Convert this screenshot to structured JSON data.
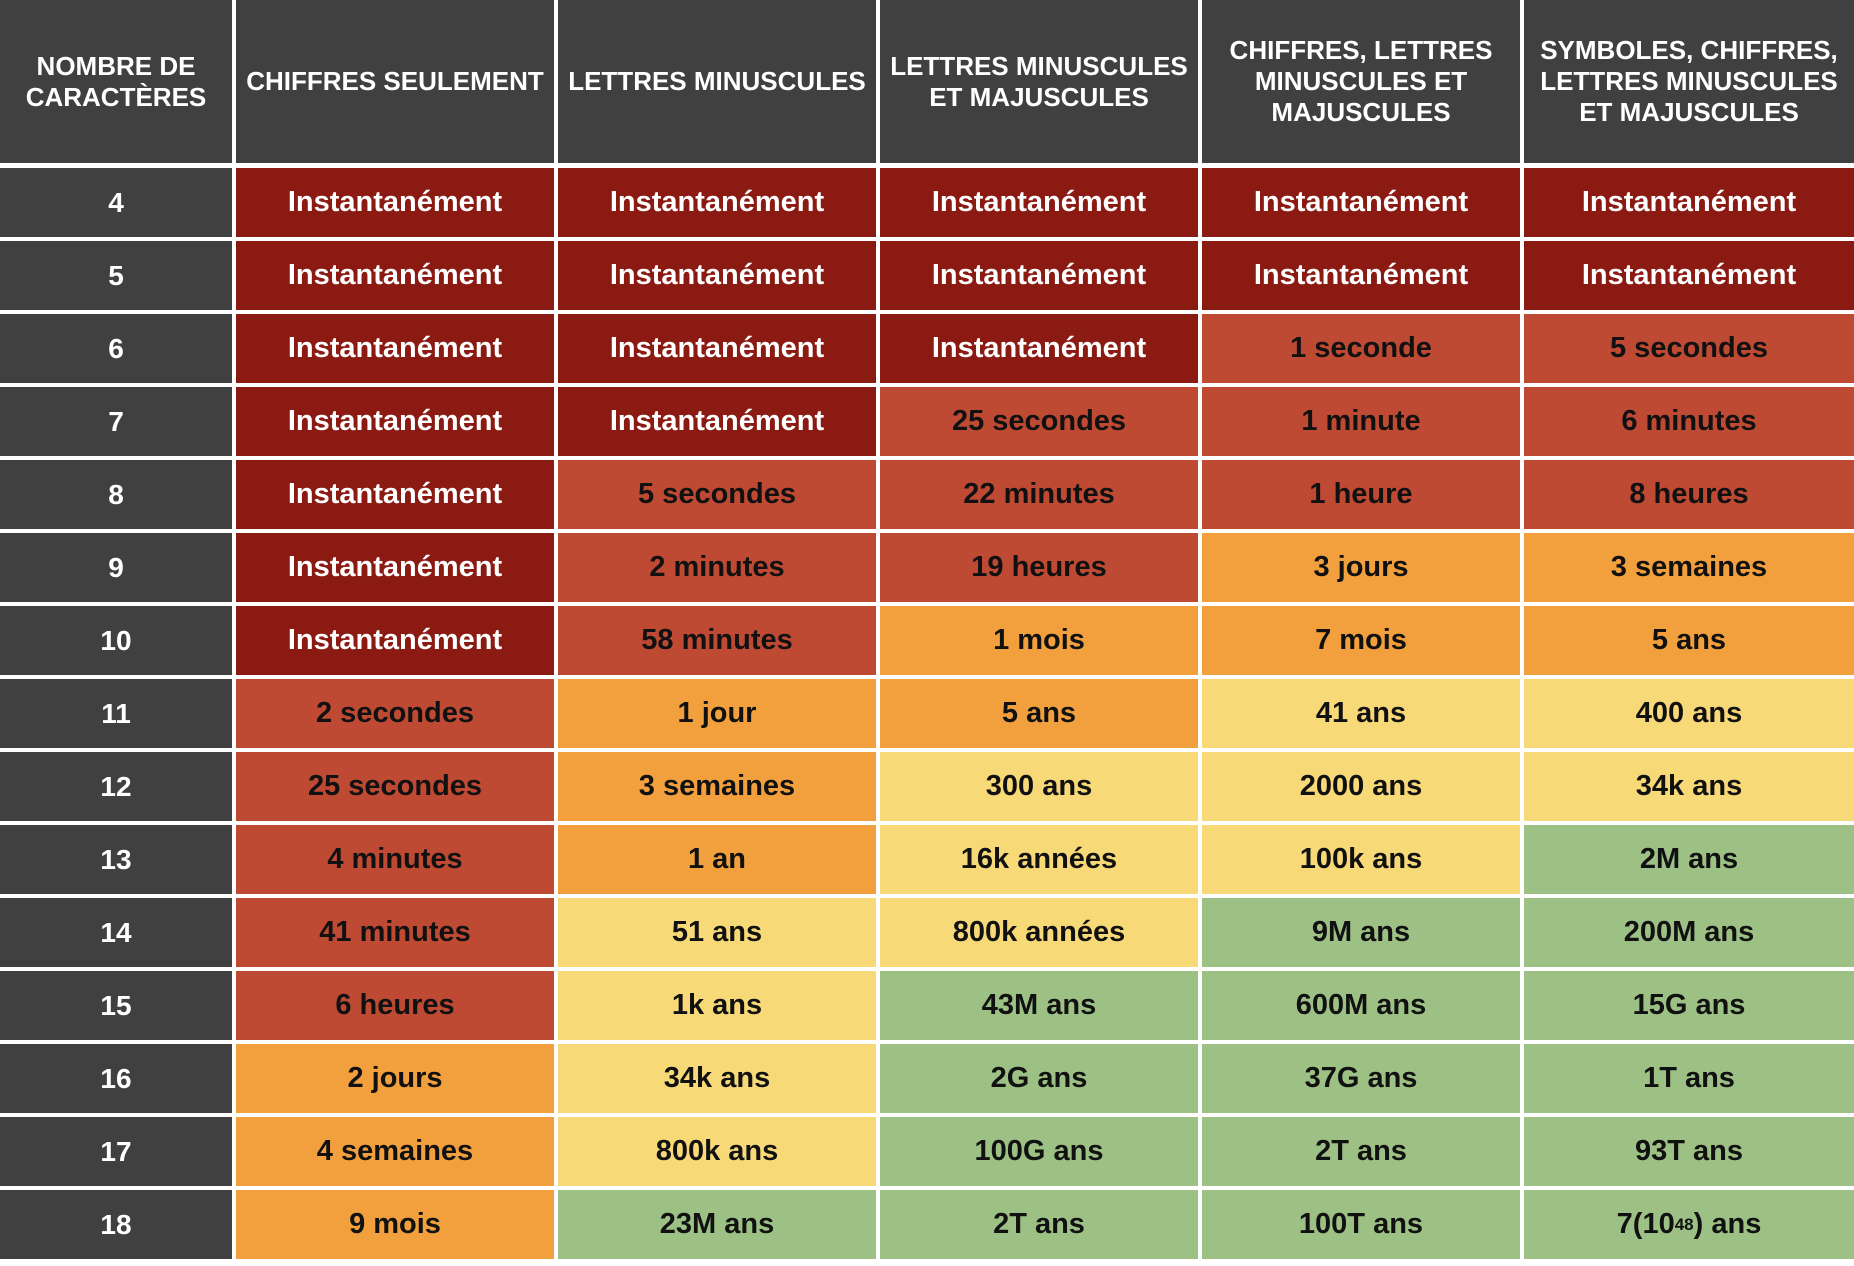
{
  "chart_data": {
    "type": "table",
    "columns": [
      "NOMBRE DE CARACTÈRES",
      "CHIFFRES SEULEMENT",
      "LETTRES MINUSCULES",
      "LETTRES MINUSCULES ET MAJUSCULES",
      "CHIFFRES, LETTRES MINUSCULES ET MAJUSCULES",
      "SYMBOLES, CHIFFRES, LETTRES MINUSCULES ET MAJUSCULES"
    ],
    "level_colors": [
      "#8b1a13",
      "#bf4a34",
      "#f2a03d",
      "#f8d978",
      "#9dc185"
    ],
    "rows": [
      {
        "length": "4",
        "cells": [
          {
            "text": "Instantanément",
            "level": 0
          },
          {
            "text": "Instantanément",
            "level": 0
          },
          {
            "text": "Instantanément",
            "level": 0
          },
          {
            "text": "Instantanément",
            "level": 0
          },
          {
            "text": "Instantanément",
            "level": 0
          }
        ]
      },
      {
        "length": "5",
        "cells": [
          {
            "text": "Instantanément",
            "level": 0
          },
          {
            "text": "Instantanément",
            "level": 0
          },
          {
            "text": "Instantanément",
            "level": 0
          },
          {
            "text": "Instantanément",
            "level": 0
          },
          {
            "text": "Instantanément",
            "level": 0
          }
        ]
      },
      {
        "length": "6",
        "cells": [
          {
            "text": "Instantanément",
            "level": 0
          },
          {
            "text": "Instantanément",
            "level": 0
          },
          {
            "text": "Instantanément",
            "level": 0
          },
          {
            "text": "1 seconde",
            "level": 1
          },
          {
            "text": "5 secondes",
            "level": 1
          }
        ]
      },
      {
        "length": "7",
        "cells": [
          {
            "text": "Instantanément",
            "level": 0
          },
          {
            "text": "Instantanément",
            "level": 0
          },
          {
            "text": "25 secondes",
            "level": 1
          },
          {
            "text": "1 minute",
            "level": 1
          },
          {
            "text": "6 minutes",
            "level": 1
          }
        ]
      },
      {
        "length": "8",
        "cells": [
          {
            "text": "Instantanément",
            "level": 0
          },
          {
            "text": "5 secondes",
            "level": 1
          },
          {
            "text": "22 minutes",
            "level": 1
          },
          {
            "text": "1 heure",
            "level": 1
          },
          {
            "text": "8 heures",
            "level": 1
          }
        ]
      },
      {
        "length": "9",
        "cells": [
          {
            "text": "Instantanément",
            "level": 0
          },
          {
            "text": "2 minutes",
            "level": 1
          },
          {
            "text": "19 heures",
            "level": 1
          },
          {
            "text": "3 jours",
            "level": 2
          },
          {
            "text": "3 semaines",
            "level": 2
          }
        ]
      },
      {
        "length": "10",
        "cells": [
          {
            "text": "Instantanément",
            "level": 0
          },
          {
            "text": "58 minutes",
            "level": 1
          },
          {
            "text": "1 mois",
            "level": 2
          },
          {
            "text": "7 mois",
            "level": 2
          },
          {
            "text": "5 ans",
            "level": 2
          }
        ]
      },
      {
        "length": "11",
        "cells": [
          {
            "text": "2 secondes",
            "level": 1
          },
          {
            "text": "1 jour",
            "level": 2
          },
          {
            "text": "5 ans",
            "level": 2
          },
          {
            "text": "41 ans",
            "level": 3
          },
          {
            "text": "400 ans",
            "level": 3
          }
        ]
      },
      {
        "length": "12",
        "cells": [
          {
            "text": "25 secondes",
            "level": 1
          },
          {
            "text": "3 semaines",
            "level": 2
          },
          {
            "text": "300 ans",
            "level": 3
          },
          {
            "text": "2000 ans",
            "level": 3
          },
          {
            "text": "34k ans",
            "level": 3
          }
        ]
      },
      {
        "length": "13",
        "cells": [
          {
            "text": "4 minutes",
            "level": 1
          },
          {
            "text": "1 an",
            "level": 2
          },
          {
            "text": "16k années",
            "level": 3
          },
          {
            "text": "100k ans",
            "level": 3
          },
          {
            "text": "2M ans",
            "level": 4
          }
        ]
      },
      {
        "length": "14",
        "cells": [
          {
            "text": "41 minutes",
            "level": 1
          },
          {
            "text": "51 ans",
            "level": 3
          },
          {
            "text": "800k années",
            "level": 3
          },
          {
            "text": "9M ans",
            "level": 4
          },
          {
            "text": "200M ans",
            "level": 4
          }
        ]
      },
      {
        "length": "15",
        "cells": [
          {
            "text": "6 heures",
            "level": 1
          },
          {
            "text": "1k ans",
            "level": 3
          },
          {
            "text": "43M ans",
            "level": 4
          },
          {
            "text": "600M ans",
            "level": 4
          },
          {
            "text": "15G ans",
            "level": 4
          }
        ]
      },
      {
        "length": "16",
        "cells": [
          {
            "text": "2 jours",
            "level": 2
          },
          {
            "text": "34k ans",
            "level": 3
          },
          {
            "text": "2G ans",
            "level": 4
          },
          {
            "text": "37G ans",
            "level": 4
          },
          {
            "text": "1T ans",
            "level": 4
          }
        ]
      },
      {
        "length": "17",
        "cells": [
          {
            "text": "4 semaines",
            "level": 2
          },
          {
            "text": "800k ans",
            "level": 3
          },
          {
            "text": "100G ans",
            "level": 4
          },
          {
            "text": "2T ans",
            "level": 4
          },
          {
            "text": "93T ans",
            "level": 4
          }
        ]
      },
      {
        "length": "18",
        "cells": [
          {
            "text": "9 mois",
            "level": 2
          },
          {
            "text": "23M ans",
            "level": 4
          },
          {
            "text": "2T ans",
            "level": 4
          },
          {
            "text": "100T ans",
            "level": 4
          },
          {
            "text": "7(10",
            "sup": "48",
            "tail": ") ans",
            "level": 4
          }
        ]
      }
    ]
  }
}
